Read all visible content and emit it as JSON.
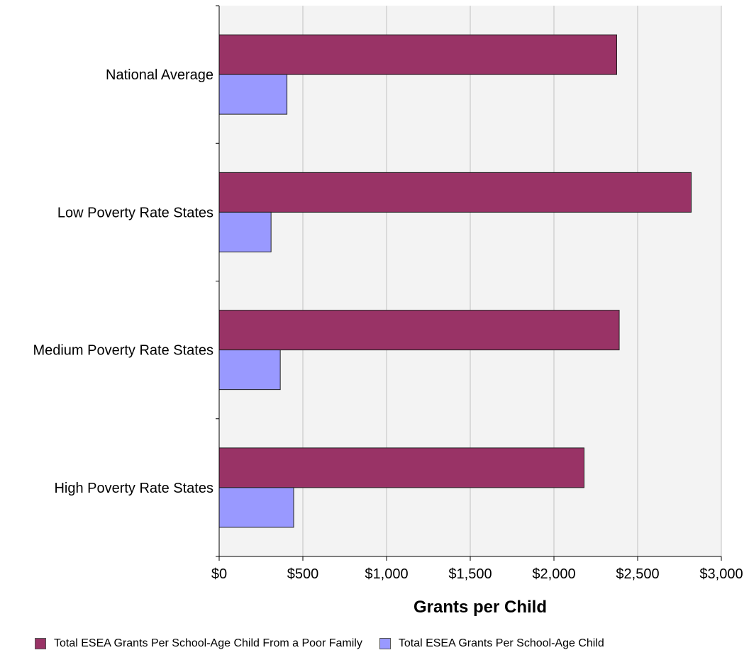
{
  "chart_data": {
    "type": "bar",
    "orientation": "horizontal",
    "categories": [
      "National Average",
      "Low Poverty Rate States",
      "Medium Poverty Rate States",
      "High Poverty Rate States"
    ],
    "series": [
      {
        "name": "Total ESEA Grants Per School-Age Child From a Poor Family",
        "color": "#993366",
        "values": [
          2375,
          2820,
          2390,
          2180
        ]
      },
      {
        "name": "Total ESEA Grants Per School-Age Child",
        "color": "#9999ff",
        "values": [
          405,
          310,
          365,
          445
        ]
      }
    ],
    "xlabel": "Grants per Child",
    "xlim": [
      0,
      3000
    ],
    "x_ticks": [
      0,
      500,
      1000,
      1500,
      2000,
      2500,
      3000
    ],
    "x_tick_labels": [
      "$0",
      "$500",
      "$1,000",
      "$1,500",
      "$2,000",
      "$2,500",
      "$3,000"
    ],
    "grid": true,
    "plot_background": "#f3f3f3",
    "legend_position": "bottom"
  }
}
